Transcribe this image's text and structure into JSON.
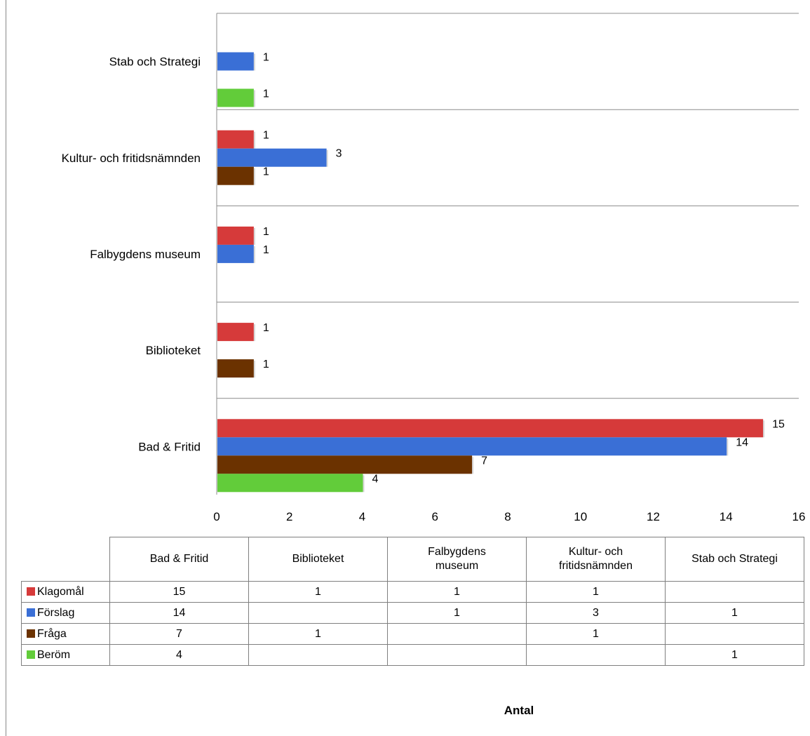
{
  "chart_data": {
    "type": "bar",
    "orientation": "horizontal",
    "categories": [
      "Bad & Fritid",
      "Biblioteket",
      "Falbygdens museum",
      "Kultur- och fritidsnämnden",
      "Stab och Strategi"
    ],
    "series": [
      {
        "name": "Klagomål",
        "color": "#d63a3a",
        "values": [
          15,
          1,
          1,
          1,
          null
        ]
      },
      {
        "name": "Förslag",
        "color": "#3a6fd6",
        "values": [
          14,
          null,
          1,
          3,
          1
        ]
      },
      {
        "name": "Fråga",
        "color": "#6b3200",
        "values": [
          7,
          1,
          null,
          1,
          null
        ]
      },
      {
        "name": "Beröm",
        "color": "#62cc3a",
        "values": [
          4,
          null,
          null,
          null,
          1
        ]
      }
    ],
    "x_ticks": [
      "0",
      "2",
      "4",
      "6",
      "8",
      "10",
      "12",
      "14",
      "16"
    ],
    "xlim": [
      0,
      16
    ],
    "xlabel": "Antal",
    "table": {
      "headers": [
        "Bad & Fritid",
        "Biblioteket",
        "Falbygdens museum",
        "Kultur- och fritidsnämnden",
        "Stab och Strategi"
      ],
      "header_lines": [
        [
          "Bad & Fritid"
        ],
        [
          "Biblioteket"
        ],
        [
          "Falbygdens",
          "museum"
        ],
        [
          "Kultur- och",
          "fritidsnämnden"
        ],
        [
          "Stab och Strategi"
        ]
      ],
      "rows": [
        {
          "label": "Klagomål",
          "cells": [
            "15",
            "1",
            "1",
            "1",
            ""
          ]
        },
        {
          "label": "Förslag",
          "cells": [
            "14",
            "",
            "1",
            "3",
            "1"
          ]
        },
        {
          "label": "Fråga",
          "cells": [
            "7",
            "1",
            "",
            "1",
            ""
          ]
        },
        {
          "label": "Beröm",
          "cells": [
            "4",
            "",
            "",
            "",
            "1"
          ]
        }
      ]
    },
    "grid": true,
    "legend": "table"
  }
}
